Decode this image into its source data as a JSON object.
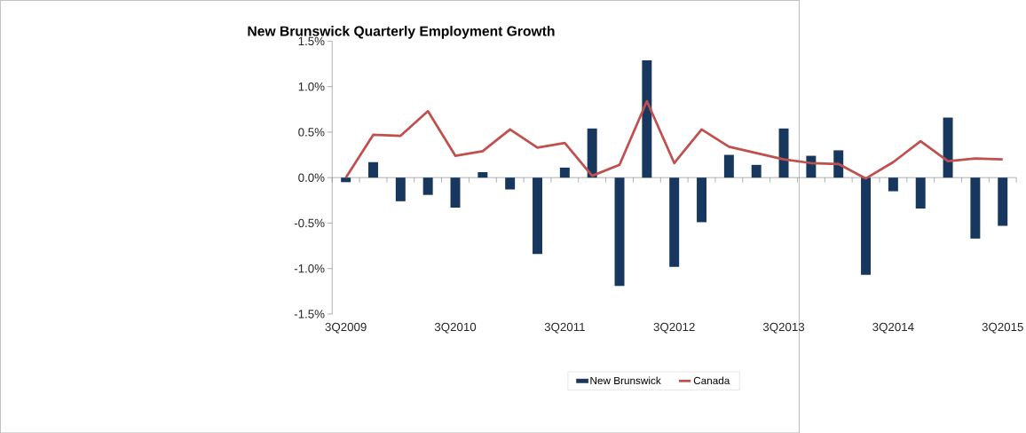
{
  "chart_data": {
    "type": "bar",
    "title": "New Brunswick Quarterly Employment Growth",
    "categories": [
      "3Q2009",
      null,
      null,
      null,
      "3Q2010",
      null,
      null,
      null,
      "3Q2011",
      null,
      null,
      null,
      "3Q2012",
      null,
      null,
      null,
      "3Q2013",
      null,
      null,
      null,
      "3Q2014",
      null,
      null,
      null,
      "3Q2015"
    ],
    "series": [
      {
        "name": "New Brunswick",
        "color": "#17375e",
        "values": [
          -0.05,
          0.17,
          -0.26,
          -0.19,
          -0.33,
          0.06,
          -0.13,
          -0.84,
          0.11,
          0.54,
          -1.19,
          1.29,
          -0.98,
          -0.49,
          0.25,
          0.14,
          0.54,
          0.24,
          0.3,
          -1.07,
          -0.15,
          -0.34,
          0.66,
          -0.67,
          -0.53
        ]
      },
      {
        "name": "Canada",
        "type": "line",
        "color": "#c0504d",
        "values": [
          0.0,
          0.47,
          0.46,
          0.73,
          0.24,
          0.29,
          0.53,
          0.33,
          0.38,
          0.02,
          0.14,
          0.84,
          0.16,
          0.53,
          0.34,
          0.27,
          0.2,
          0.16,
          0.15,
          -0.01,
          0.17,
          0.4,
          0.18,
          0.21,
          0.2
        ]
      }
    ],
    "ylim": [
      -1.5,
      1.5
    ],
    "yticks": [
      {
        "value": -1.5,
        "label": "-1.5%"
      },
      {
        "value": -1.0,
        "label": "-1.0%"
      },
      {
        "value": -0.5,
        "label": "-0.5%"
      },
      {
        "value": 0.0,
        "label": "0.0%"
      },
      {
        "value": 0.5,
        "label": "0.5%"
      },
      {
        "value": 1.0,
        "label": "1.0%"
      },
      {
        "value": 1.5,
        "label": "1.5%"
      }
    ],
    "legend": "bottom"
  }
}
